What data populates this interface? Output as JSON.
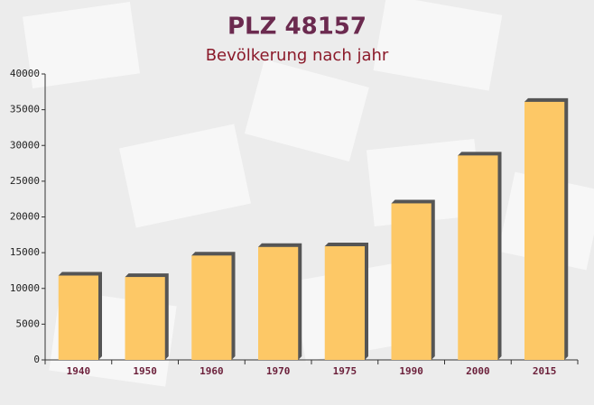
{
  "chart_data": {
    "type": "bar",
    "title": "PLZ 48157",
    "subtitle": "Bevölkerung nach jahr",
    "categories": [
      "1940",
      "1950",
      "1960",
      "1970",
      "1975",
      "1990",
      "2000",
      "2015"
    ],
    "values": [
      11800,
      11600,
      14600,
      15800,
      15900,
      21900,
      28600,
      36100
    ],
    "color": "#fdc866",
    "ylim": [
      0,
      40000
    ],
    "yticks": [
      0,
      5000,
      10000,
      15000,
      20000,
      25000,
      30000,
      35000,
      40000
    ]
  }
}
